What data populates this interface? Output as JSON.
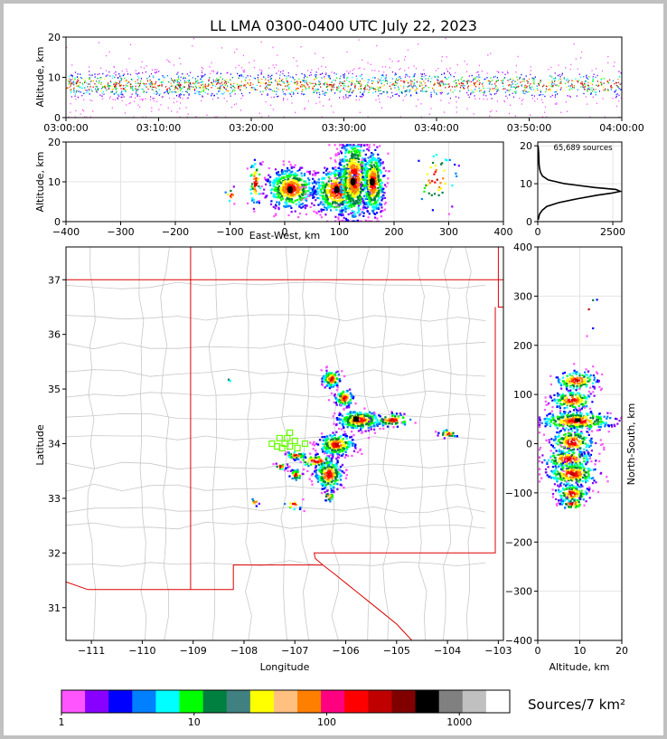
{
  "title": "LL LMA 0300-0400 UTC July 22, 2023",
  "colors": {
    "frame": "#c0c0c0",
    "state_line": "#dd0000",
    "county_line": "#c8c8c8",
    "station": "#66ff00"
  },
  "chart_data": [
    {
      "name": "altitude-time",
      "type": "heatmap",
      "xlabel": "",
      "ylabel": "Altitude, km",
      "x_range": [
        "03:00:00",
        "04:00:00"
      ],
      "x_ticks": [
        "03:00:00",
        "03:10:00",
        "03:20:00",
        "03:30:00",
        "03:40:00",
        "03:50:00",
        "04:00:00"
      ],
      "ylim": [
        0,
        20
      ],
      "y_ticks": [
        0,
        10,
        20
      ],
      "core_altitude_km": [
        6,
        11
      ],
      "grid": false
    },
    {
      "name": "altitude-eastwest",
      "type": "heatmap",
      "xlabel": "East-West, km",
      "ylabel": "Altitude, km",
      "xlim": [
        -400,
        400
      ],
      "x_ticks": [
        -400,
        -300,
        -200,
        -100,
        0,
        100,
        200,
        300,
        400
      ],
      "ylim": [
        0,
        20
      ],
      "y_ticks": [
        0,
        10,
        20
      ],
      "grid": true
    },
    {
      "name": "altitude-histogram",
      "type": "line",
      "annotation": "65,689 sources",
      "xlim": [
        0,
        2800
      ],
      "x_ticks": [
        0,
        2500
      ],
      "ylim": [
        0,
        21
      ],
      "y_ticks": [
        0,
        10,
        20
      ],
      "altitude_km": [
        0.5,
        1,
        2,
        3,
        4,
        5,
        6,
        7,
        7.5,
        8,
        8.5,
        9,
        10,
        11,
        12,
        13,
        14,
        15,
        16,
        17,
        18,
        19,
        20
      ],
      "sources": [
        15,
        30,
        60,
        150,
        300,
        700,
        1300,
        2000,
        2450,
        2750,
        2600,
        1900,
        900,
        350,
        160,
        90,
        60,
        45,
        40,
        35,
        30,
        20,
        10
      ]
    },
    {
      "name": "plan-view",
      "type": "heatmap",
      "xlabel": "Longitude",
      "ylabel": "Latitude",
      "xlim": [
        -111.5,
        -102.9
      ],
      "x_ticks": [
        -111,
        -110,
        -109,
        -108,
        -107,
        -106,
        -105,
        -104,
        -103
      ],
      "ylim": [
        30.4,
        37.6
      ],
      "y_ticks": [
        31,
        32,
        33,
        34,
        35,
        36,
        37
      ],
      "station_count": 11,
      "grid": false
    },
    {
      "name": "northsouth-altitude",
      "type": "heatmap",
      "xlabel": "Altitude, km",
      "ylabel": "North-South, km",
      "xlim": [
        0,
        20
      ],
      "x_ticks": [
        0,
        10,
        20
      ],
      "ylim": [
        -400,
        400
      ],
      "y_ticks": [
        -400,
        -300,
        -200,
        -100,
        0,
        100,
        200,
        300,
        400
      ],
      "grid": true
    },
    {
      "name": "colorbar",
      "type": "table",
      "label": "Sources/7 km²",
      "scale": "log",
      "range": [
        1,
        2400
      ],
      "ticks": [
        "1",
        "10",
        "100",
        "1000"
      ],
      "colors": [
        "#ff55ff",
        "#8800ff",
        "#0000ff",
        "#0080ff",
        "#00ffff",
        "#00ff00",
        "#008040",
        "#408080",
        "#ffff00",
        "#ffc080",
        "#ff8000",
        "#ff0080",
        "#ff0000",
        "#c00000",
        "#800000",
        "#000000",
        "#808080",
        "#c0c0c0",
        "#ffffff"
      ]
    }
  ]
}
